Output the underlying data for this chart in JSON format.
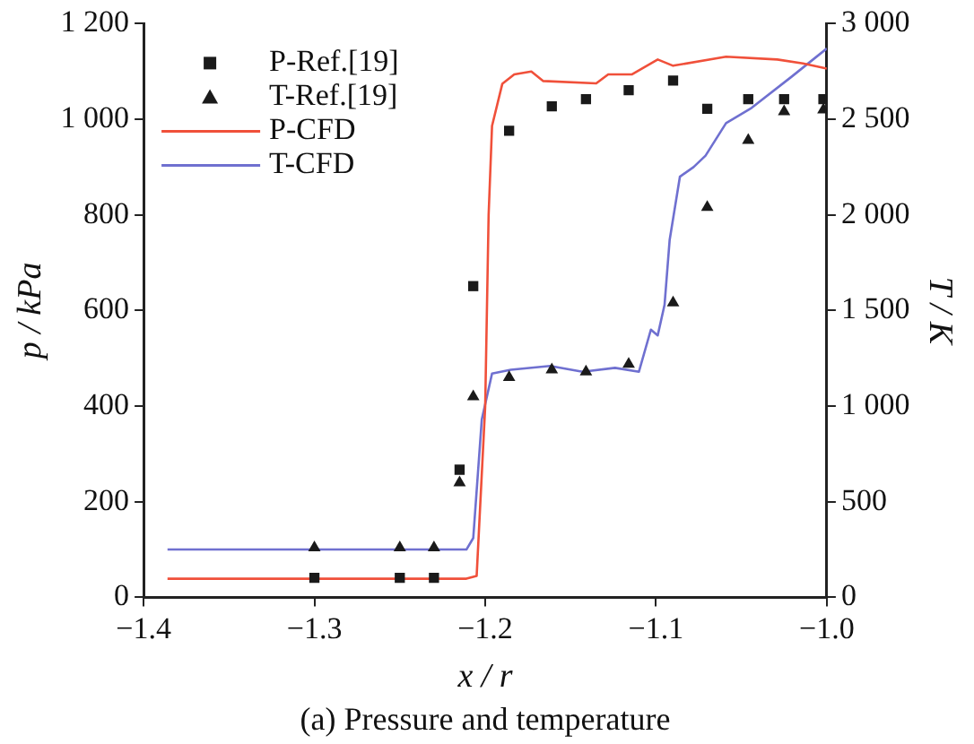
{
  "chart_data": {
    "type": "scatter",
    "title": "(a) Pressure and temperature",
    "xlabel": "x / r",
    "ylabel": "p / kPa",
    "y2label": "T / K",
    "xlim": [
      -1.4,
      -1.0
    ],
    "xticks": [
      {
        "value": -1.4,
        "label": "−1.4"
      },
      {
        "value": -1.3,
        "label": "−1.3"
      },
      {
        "value": -1.2,
        "label": "−1.2"
      },
      {
        "value": -1.1,
        "label": "−1.1"
      },
      {
        "value": -1.0,
        "label": "−1.0"
      }
    ],
    "ylim": [
      0,
      1200
    ],
    "yticks": [
      0,
      200,
      400,
      600,
      800,
      {
        "value": 1000,
        "label": "1 000"
      },
      {
        "value": 1200,
        "label": "1 200"
      }
    ],
    "y2lim": [
      0,
      3000
    ],
    "y2ticks": [
      0,
      500,
      {
        "value": 1000,
        "label": "1 000"
      },
      {
        "value": 1500,
        "label": "1 500"
      },
      {
        "value": 2000,
        "label": "2 000"
      },
      {
        "value": 2500,
        "label": "2 500"
      },
      {
        "value": 3000,
        "label": "3 000"
      }
    ],
    "grid": false,
    "legend": "top left",
    "series": [
      {
        "name": "P-Ref.[19]",
        "type": "scatter",
        "marker": "square",
        "color": "#1a1a1a",
        "x": [
          -1.3,
          -1.25,
          -1.23,
          -1.215,
          -1.207,
          -1.186,
          -1.161,
          -1.141,
          -1.116,
          -1.09,
          -1.07,
          -1.046,
          -1.025,
          -1.002
        ],
        "values": [
          41,
          41,
          41,
          267,
          651,
          976,
          1027,
          1042,
          1061,
          1081,
          1022,
          1042,
          1042,
          1042
        ]
      },
      {
        "name": "T-Ref.[19]",
        "type": "scatter",
        "marker": "triangle",
        "axis": "y2",
        "color": "#1a1a1a",
        "x": [
          -1.3,
          -1.25,
          -1.23,
          -1.215,
          -1.207,
          -1.186,
          -1.161,
          -1.141,
          -1.116,
          -1.09,
          -1.07,
          -1.046,
          -1.025,
          -1.002
        ],
        "values": [
          260,
          260,
          260,
          600,
          1050,
          1150,
          1190,
          1180,
          1220,
          1540,
          2040,
          2390,
          2540,
          2550
        ]
      },
      {
        "name": "P-CFD",
        "type": "line",
        "marker": "none",
        "color": "#f0503a",
        "x": [
          -1.386,
          -1.211,
          -1.205,
          -1.2,
          -1.198,
          -1.196,
          -1.19,
          -1.183,
          -1.173,
          -1.166,
          -1.135,
          -1.128,
          -1.114,
          -1.099,
          -1.09,
          -1.059,
          -1.029,
          -1.014,
          -1.0
        ],
        "values": [
          39,
          39,
          45,
          400,
          800,
          986,
          1074,
          1094,
          1100,
          1080,
          1075,
          1094,
          1094,
          1125,
          1112,
          1131,
          1125,
          1117,
          1106
        ]
      },
      {
        "name": "T-CFD",
        "type": "line",
        "marker": "none",
        "axis": "y2",
        "color": "#6f70d0",
        "x": [
          -1.386,
          -1.211,
          -1.207,
          -1.202,
          -1.196,
          -1.185,
          -1.162,
          -1.143,
          -1.124,
          -1.11,
          -1.103,
          -1.099,
          -1.095,
          -1.092,
          -1.086,
          -1.078,
          -1.071,
          -1.059,
          -1.044,
          -1.021,
          -1.0
        ],
        "values": [
          250,
          250,
          310,
          930,
          1170,
          1190,
          1210,
          1180,
          1200,
          1180,
          1400,
          1370,
          1530,
          1870,
          2200,
          2250,
          2310,
          2480,
          2560,
          2720,
          2870
        ]
      }
    ]
  }
}
